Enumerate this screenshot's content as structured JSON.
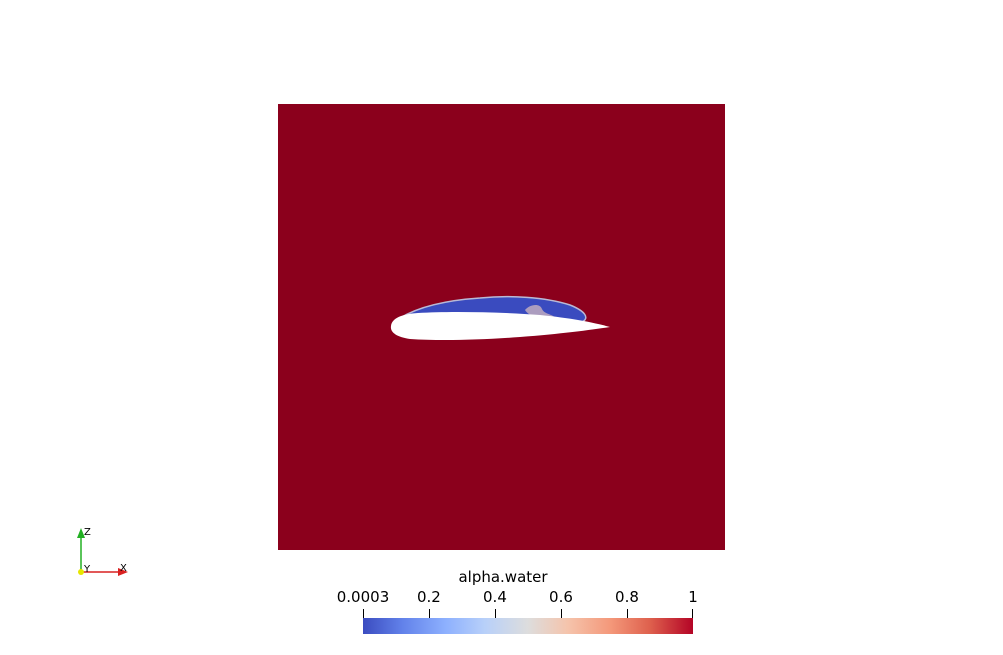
{
  "colorbar": {
    "title": "alpha.water",
    "range": [
      0.0003,
      1
    ],
    "ticks": [
      {
        "value": 0.0003,
        "label": "0.0003"
      },
      {
        "value": 0.2,
        "label": "0.2"
      },
      {
        "value": 0.4,
        "label": "0.4"
      },
      {
        "value": 0.6,
        "label": "0.6"
      },
      {
        "value": 0.8,
        "label": "0.8"
      },
      {
        "value": 1,
        "label": "1"
      }
    ],
    "colormap": "cool-to-warm",
    "low_color": "#3b4cc0",
    "high_color": "#b40426"
  },
  "domain_color": "#8b001c",
  "vapor_color": "#3a4bbf",
  "axes": {
    "x_label": "X",
    "y_label": "Y",
    "z_label": "Z",
    "x_color": "#d92020",
    "z_color": "#22b022",
    "origin_color": "#e6e600"
  }
}
